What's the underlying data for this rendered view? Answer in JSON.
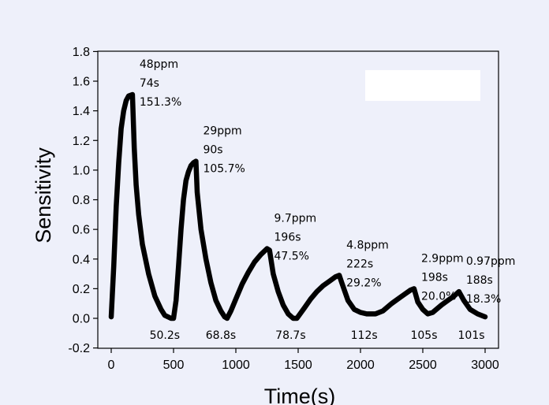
{
  "chart_data": {
    "type": "line",
    "title": "",
    "xlabel": "Time(s)",
    "ylabel": "Sensitivity",
    "xlim": [
      0,
      3000
    ],
    "ylim": [
      -0.2,
      1.8
    ],
    "x_ticks": [
      "0",
      "500",
      "1000",
      "1500",
      "2000",
      "2500",
      "3000"
    ],
    "y_ticks": [
      "-0.2",
      "0.0",
      "0.2",
      "0.4",
      "0.6",
      "0.8",
      "1.0",
      "1.2",
      "1.4",
      "1.6",
      "1.8"
    ],
    "grid": false,
    "legend": "top-right, empty",
    "series": [
      {
        "color": "#000000",
        "points": [
          [
            0,
            0.01
          ],
          [
            20,
            0.35
          ],
          [
            40,
            0.75
          ],
          [
            60,
            1.05
          ],
          [
            80,
            1.28
          ],
          [
            100,
            1.4
          ],
          [
            120,
            1.47
          ],
          [
            140,
            1.5
          ],
          [
            170,
            1.51
          ],
          [
            185,
            1.15
          ],
          [
            200,
            0.9
          ],
          [
            220,
            0.7
          ],
          [
            250,
            0.5
          ],
          [
            300,
            0.3
          ],
          [
            350,
            0.15
          ],
          [
            400,
            0.06
          ],
          [
            430,
            0.02
          ],
          [
            480,
            0.0
          ],
          [
            500,
            0.0
          ],
          [
            520,
            0.12
          ],
          [
            540,
            0.35
          ],
          [
            560,
            0.6
          ],
          [
            580,
            0.8
          ],
          [
            600,
            0.93
          ],
          [
            620,
            0.99
          ],
          [
            640,
            1.03
          ],
          [
            660,
            1.05
          ],
          [
            680,
            1.06
          ],
          [
            690,
            0.85
          ],
          [
            720,
            0.6
          ],
          [
            760,
            0.4
          ],
          [
            800,
            0.24
          ],
          [
            840,
            0.12
          ],
          [
            880,
            0.05
          ],
          [
            910,
            0.01
          ],
          [
            930,
            0.0
          ],
          [
            960,
            0.05
          ],
          [
            1000,
            0.13
          ],
          [
            1050,
            0.23
          ],
          [
            1100,
            0.31
          ],
          [
            1150,
            0.38
          ],
          [
            1200,
            0.43
          ],
          [
            1250,
            0.47
          ],
          [
            1270,
            0.46
          ],
          [
            1300,
            0.3
          ],
          [
            1340,
            0.18
          ],
          [
            1380,
            0.09
          ],
          [
            1420,
            0.03
          ],
          [
            1460,
            0.0
          ],
          [
            1490,
            0.0
          ],
          [
            1550,
            0.07
          ],
          [
            1600,
            0.13
          ],
          [
            1650,
            0.18
          ],
          [
            1700,
            0.22
          ],
          [
            1750,
            0.25
          ],
          [
            1800,
            0.28
          ],
          [
            1830,
            0.29
          ],
          [
            1850,
            0.24
          ],
          [
            1900,
            0.12
          ],
          [
            1950,
            0.06
          ],
          [
            2000,
            0.04
          ],
          [
            2050,
            0.03
          ],
          [
            2120,
            0.03
          ],
          [
            2180,
            0.05
          ],
          [
            2250,
            0.1
          ],
          [
            2300,
            0.13
          ],
          [
            2350,
            0.16
          ],
          [
            2400,
            0.19
          ],
          [
            2430,
            0.2
          ],
          [
            2460,
            0.11
          ],
          [
            2500,
            0.06
          ],
          [
            2540,
            0.03
          ],
          [
            2580,
            0.04
          ],
          [
            2650,
            0.09
          ],
          [
            2700,
            0.12
          ],
          [
            2750,
            0.15
          ],
          [
            2790,
            0.18
          ],
          [
            2830,
            0.12
          ],
          [
            2880,
            0.06
          ],
          [
            2940,
            0.03
          ],
          [
            3000,
            0.01
          ]
        ]
      }
    ],
    "peak_labels": [
      {
        "x": 170,
        "y": 1.51,
        "lines": [
          "48ppm",
          "74s",
          "151.3%"
        ]
      },
      {
        "x": 680,
        "y": 1.06,
        "lines": [
          "29ppm",
          "90s",
          "105.7%"
        ]
      },
      {
        "x": 1250,
        "y": 0.47,
        "lines": [
          "9.7ppm",
          "196s",
          "47.5%"
        ]
      },
      {
        "x": 1830,
        "y": 0.29,
        "lines": [
          "4.8ppm",
          "222s",
          "29.2%"
        ]
      },
      {
        "x": 2430,
        "y": 0.2,
        "lines": [
          "2.9ppm",
          "198s",
          "20.0%"
        ]
      },
      {
        "x": 2790,
        "y": 0.18,
        "lines": [
          "0.97ppm",
          "188s",
          "18.3%"
        ]
      }
    ],
    "recovery_labels": [
      {
        "x": 480,
        "label": "50.2s"
      },
      {
        "x": 930,
        "label": "68.8s"
      },
      {
        "x": 1490,
        "label": "78.7s"
      },
      {
        "x": 2080,
        "label": "112s"
      },
      {
        "x": 2560,
        "label": "105s"
      },
      {
        "x": 2940,
        "label": "101s"
      }
    ]
  }
}
